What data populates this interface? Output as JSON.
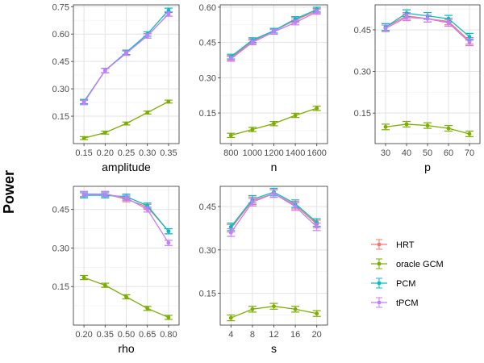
{
  "figure": {
    "ylabel": "Power"
  },
  "series": [
    {
      "name": "HRT",
      "color": "#F8766D"
    },
    {
      "name": "oracle GCM",
      "color": "#7CAE00"
    },
    {
      "name": "PCM",
      "color": "#00BFC4"
    },
    {
      "name": "tPCM",
      "color": "#C77CFF"
    }
  ],
  "chart_data": [
    {
      "type": "line",
      "id": "amplitude",
      "xlabel": "amplitude",
      "categories": [
        "0.15",
        "0.20",
        "0.25",
        "0.30",
        "0.35"
      ],
      "ylim": [
        0.0,
        0.76
      ],
      "yticks": [
        "0.15",
        "0.30",
        "0.45",
        "0.60",
        "0.75"
      ],
      "series": [
        {
          "name": "HRT",
          "values": [
            0.23,
            0.4,
            0.5,
            0.59,
            0.71
          ],
          "err": 0.012
        },
        {
          "name": "oracle GCM",
          "values": [
            0.03,
            0.06,
            0.11,
            0.17,
            0.23
          ],
          "err": 0.008
        },
        {
          "name": "PCM",
          "values": [
            0.23,
            0.4,
            0.5,
            0.6,
            0.73
          ],
          "err": 0.012
        },
        {
          "name": "tPCM",
          "values": [
            0.225,
            0.4,
            0.495,
            0.59,
            0.71
          ],
          "err": 0.012
        }
      ]
    },
    {
      "type": "line",
      "id": "n",
      "xlabel": "n",
      "categories": [
        "800",
        "1000",
        "1200",
        "1400",
        "1600"
      ],
      "ylim": [
        0.02,
        0.61
      ],
      "yticks": [
        "0.15",
        "0.30",
        "0.45",
        "0.60"
      ],
      "series": [
        {
          "name": "HRT",
          "values": [
            0.385,
            0.455,
            0.5,
            0.545,
            0.585
          ],
          "err": 0.01
        },
        {
          "name": "oracle GCM",
          "values": [
            0.055,
            0.08,
            0.105,
            0.14,
            0.17
          ],
          "err": 0.009
        },
        {
          "name": "PCM",
          "values": [
            0.39,
            0.46,
            0.5,
            0.55,
            0.59
          ],
          "err": 0.01
        },
        {
          "name": "tPCM",
          "values": [
            0.38,
            0.45,
            0.495,
            0.535,
            0.58
          ],
          "err": 0.01
        }
      ]
    },
    {
      "type": "line",
      "id": "p",
      "xlabel": "p",
      "categories": [
        "30",
        "40",
        "50",
        "60",
        "70"
      ],
      "ylim": [
        0.04,
        0.54
      ],
      "yticks": [
        "0.15",
        "0.30",
        "0.45"
      ],
      "series": [
        {
          "name": "HRT",
          "values": [
            0.46,
            0.5,
            0.49,
            0.48,
            0.41
          ],
          "err": 0.012
        },
        {
          "name": "oracle GCM",
          "values": [
            0.1,
            0.11,
            0.105,
            0.095,
            0.075
          ],
          "err": 0.01
        },
        {
          "name": "PCM",
          "values": [
            0.46,
            0.51,
            0.5,
            0.49,
            0.425
          ],
          "err": 0.012
        },
        {
          "name": "tPCM",
          "values": [
            0.455,
            0.495,
            0.49,
            0.475,
            0.405
          ],
          "err": 0.012
        }
      ]
    },
    {
      "type": "line",
      "id": "rho",
      "xlabel": "rho",
      "categories": [
        "0.20",
        "0.35",
        "0.50",
        "0.65",
        "0.80"
      ],
      "ylim": [
        0.0,
        0.54
      ],
      "yticks": [
        "0.15",
        "0.30",
        "0.45"
      ],
      "series": [
        {
          "name": "HRT",
          "values": [
            0.51,
            0.51,
            0.49,
            0.46,
            0.365
          ],
          "err": 0.01
        },
        {
          "name": "oracle GCM",
          "values": [
            0.185,
            0.155,
            0.11,
            0.065,
            0.03
          ],
          "err": 0.008
        },
        {
          "name": "PCM",
          "values": [
            0.505,
            0.505,
            0.5,
            0.465,
            0.365
          ],
          "err": 0.01
        },
        {
          "name": "tPCM",
          "values": [
            0.51,
            0.51,
            0.495,
            0.45,
            0.32
          ],
          "err": 0.01
        }
      ]
    },
    {
      "type": "line",
      "id": "s",
      "xlabel": "s",
      "categories": [
        "4",
        "8",
        "12",
        "16",
        "20"
      ],
      "ylim": [
        0.04,
        0.52
      ],
      "yticks": [
        "0.15",
        "0.30",
        "0.45"
      ],
      "series": [
        {
          "name": "HRT",
          "values": [
            0.375,
            0.47,
            0.495,
            0.455,
            0.39
          ],
          "err": 0.013
        },
        {
          "name": "oracle GCM",
          "values": [
            0.065,
            0.095,
            0.105,
            0.095,
            0.08
          ],
          "err": 0.01
        },
        {
          "name": "PCM",
          "values": [
            0.38,
            0.475,
            0.5,
            0.46,
            0.395
          ],
          "err": 0.013
        },
        {
          "name": "tPCM",
          "values": [
            0.36,
            0.465,
            0.495,
            0.45,
            0.38
          ],
          "err": 0.013
        }
      ]
    }
  ]
}
